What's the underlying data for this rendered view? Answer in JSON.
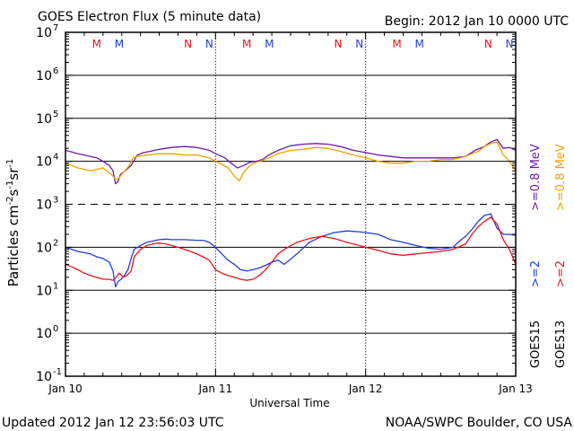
{
  "header": {
    "title": "GOES Electron Flux (5 minute data)",
    "begin": "Begin: 2012 Jan 10 0000 UTC"
  },
  "footer": {
    "updated": "Updated 2012 Jan 12 23:56:03 UTC",
    "credit": "NOAA/SWPC Boulder, CO USA"
  },
  "colors": {
    "goes15_2mev": "#1f3fd6",
    "goes15_08mev": "#6a1aa8",
    "goes13_2mev": "#e8141e",
    "goes13_08mev": "#f0a000",
    "marker_m": "#e8141e",
    "marker_n_red": "#e8141e",
    "marker_n_blue": "#1f3fd6"
  },
  "chart_data": {
    "type": "line",
    "title": "GOES Electron Flux (5 minute data)",
    "xlabel": "Universal Time",
    "ylabel_parts": {
      "base": "Particles cm",
      "e1": "-2",
      "mid1": "s",
      "e2": "-1",
      "mid2": "sr",
      "e3": "-1"
    },
    "x_unit": "hours since 2012 Jan 10 0000 UTC",
    "xlim": [
      0,
      72
    ],
    "yscale": "log",
    "ylim_exp": [
      -1,
      7
    ],
    "x_ticks": [
      {
        "x": 0,
        "label": "Jan 10"
      },
      {
        "x": 24,
        "label": "Jan 11"
      },
      {
        "x": 48,
        "label": "Jan 12"
      },
      {
        "x": 72,
        "label": "Jan 13"
      }
    ],
    "y_ticks": [
      {
        "exp": 7,
        "base": "10",
        "sup": "7"
      },
      {
        "exp": 6,
        "base": "10",
        "sup": "6"
      },
      {
        "exp": 5,
        "base": "10",
        "sup": "5"
      },
      {
        "exp": 4,
        "base": "10",
        "sup": "4"
      },
      {
        "exp": 3,
        "base": "10",
        "sup": "3"
      },
      {
        "exp": 2,
        "base": "10",
        "sup": "2"
      },
      {
        "exp": 1,
        "base": "10",
        "sup": "1"
      },
      {
        "exp": 0,
        "base": "10",
        "sup": "0"
      },
      {
        "exp": -1,
        "base": "10",
        "sup": "-1"
      }
    ],
    "hlines_solid_exp": [
      6,
      5,
      4,
      2,
      1,
      0
    ],
    "hlines_dashed_exp": [
      3
    ],
    "markers": [
      {
        "x": 5.0,
        "label": "M",
        "color": "#e8141e"
      },
      {
        "x": 8.6,
        "label": "M",
        "color": "#1f3fd6"
      },
      {
        "x": 19.6,
        "label": "N",
        "color": "#e8141e"
      },
      {
        "x": 23.0,
        "label": "N",
        "color": "#1f3fd6"
      },
      {
        "x": 29.0,
        "label": "M",
        "color": "#e8141e"
      },
      {
        "x": 32.6,
        "label": "M",
        "color": "#1f3fd6"
      },
      {
        "x": 43.6,
        "label": "N",
        "color": "#e8141e"
      },
      {
        "x": 47.0,
        "label": "N",
        "color": "#1f3fd6"
      },
      {
        "x": 53.0,
        "label": "M",
        "color": "#e8141e"
      },
      {
        "x": 56.6,
        "label": "M",
        "color": "#1f3fd6"
      },
      {
        "x": 67.6,
        "label": "N",
        "color": "#e8141e"
      },
      {
        "x": 71.0,
        "label": "N",
        "color": "#1f3fd6"
      }
    ],
    "legend_right": [
      {
        "text": "GOES13",
        "color": "#000000",
        "col": 1,
        "slot": "bottom"
      },
      {
        "text": ">=2",
        "color": "#e8141e",
        "col": 1,
        "slot": "mid"
      },
      {
        "text": ">=0.8 MeV",
        "color": "#f0a000",
        "col": 1,
        "slot": "top"
      },
      {
        "text": "GOES15",
        "color": "#000000",
        "col": 0,
        "slot": "bottom"
      },
      {
        "text": ">=2",
        "color": "#1f3fd6",
        "col": 0,
        "slot": "mid"
      },
      {
        "text": ">=0.8 MeV",
        "color": "#6a1aa8",
        "col": 0,
        "slot": "top"
      }
    ],
    "series": [
      {
        "name": "GOES15 >=0.8 MeV",
        "color": "#6a1aa8",
        "x": [
          0,
          1,
          2,
          3,
          4,
          5,
          6,
          7,
          7.6,
          8,
          8.4,
          8.8,
          9.2,
          9.8,
          10.5,
          11.5,
          12.5,
          13.5,
          15,
          17,
          19,
          21,
          23,
          24,
          25.5,
          26.5,
          27.5,
          28.5,
          29.5,
          30.5,
          31.5,
          32.5,
          34,
          36,
          38,
          40,
          42,
          44,
          46,
          48,
          50,
          52,
          54,
          56,
          58,
          60,
          62,
          64,
          65.5,
          67,
          68,
          69,
          70,
          71,
          72
        ],
        "y": [
          18000,
          16500,
          15000,
          14000,
          13000,
          12000,
          10000,
          8000,
          6000,
          3000,
          3400,
          5000,
          5500,
          6500,
          8000,
          14000,
          16000,
          17000,
          19000,
          21000,
          22000,
          21000,
          18000,
          15000,
          12000,
          9000,
          7000,
          8000,
          9500,
          10000,
          11000,
          14000,
          18000,
          23000,
          25000,
          26000,
          25000,
          22000,
          18000,
          16000,
          14000,
          13000,
          12000,
          12000,
          12000,
          12000,
          12000,
          13000,
          18000,
          22000,
          28000,
          32000,
          20000,
          21000,
          18000
        ]
      },
      {
        "name": "GOES13 >=0.8 MeV",
        "color": "#f0a000",
        "x": [
          0,
          1,
          2,
          3,
          4,
          5,
          6,
          7,
          7.6,
          8,
          8.5,
          9,
          9.5,
          10.2,
          10.8,
          11.5,
          13,
          15,
          17,
          19,
          21,
          23,
          24,
          25,
          26,
          27,
          27.8,
          28.5,
          29.5,
          30.5,
          31.5,
          32.5,
          34,
          36,
          38,
          40,
          42,
          44,
          46,
          48,
          50,
          52,
          54,
          56,
          58,
          60,
          62,
          64,
          65,
          66,
          67,
          68,
          69,
          70,
          71,
          72
        ],
        "y": [
          9000,
          8000,
          7000,
          6500,
          6000,
          6500,
          7000,
          5500,
          4500,
          3800,
          4000,
          5000,
          6000,
          8000,
          12000,
          13000,
          14000,
          15000,
          15000,
          14000,
          14000,
          12000,
          10000,
          8500,
          7000,
          4500,
          3500,
          5500,
          8000,
          9500,
          10500,
          12000,
          15000,
          18000,
          19000,
          21000,
          20000,
          17000,
          14000,
          12000,
          10000,
          9000,
          9000,
          10000,
          10000,
          11000,
          11000,
          13000,
          15000,
          17000,
          22000,
          26000,
          28000,
          14000,
          10000,
          6000
        ]
      },
      {
        "name": "GOES15 >=2 MeV",
        "color": "#1f3fd6",
        "x": [
          0,
          1,
          2,
          3,
          4,
          5,
          6,
          7,
          7.6,
          8,
          8.4,
          8.9,
          9.4,
          10,
          10.5,
          11,
          12,
          13,
          14,
          15,
          16,
          17,
          19,
          21,
          22,
          23,
          24,
          25,
          26,
          27,
          28,
          29,
          30,
          31,
          32,
          33,
          34,
          35,
          37,
          39,
          41,
          43,
          45,
          47,
          48,
          50,
          52,
          54,
          56,
          58,
          60,
          62,
          63,
          64,
          65,
          66,
          67,
          68,
          69,
          70,
          71,
          72
        ],
        "y": [
          100,
          90,
          80,
          75,
          70,
          60,
          55,
          45,
          28,
          12,
          16,
          18,
          22,
          30,
          55,
          90,
          110,
          130,
          140,
          150,
          155,
          150,
          150,
          145,
          145,
          130,
          100,
          70,
          50,
          40,
          30,
          28,
          30,
          33,
          38,
          45,
          50,
          40,
          70,
          130,
          180,
          220,
          240,
          230,
          220,
          200,
          150,
          130,
          110,
          95,
          90,
          100,
          140,
          180,
          260,
          400,
          550,
          600,
          280,
          200,
          200,
          190
        ]
      },
      {
        "name": "GOES13 >=2 MeV",
        "color": "#e8141e",
        "x": [
          0,
          1,
          2,
          3,
          4,
          5,
          6,
          7,
          7.6,
          8.1,
          8.6,
          9.2,
          9.8,
          10.5,
          11,
          12,
          13,
          14,
          15,
          16,
          17,
          18,
          19,
          20,
          21,
          22,
          23,
          24,
          25,
          26,
          27,
          28,
          29,
          30,
          31,
          32,
          33,
          34,
          35,
          37,
          39,
          41,
          43,
          45,
          47,
          48,
          50,
          52,
          54,
          56,
          58,
          60,
          62,
          64,
          65,
          66,
          67,
          68,
          69,
          70,
          71,
          72
        ],
        "y": [
          40,
          35,
          30,
          25,
          22,
          20,
          18,
          18,
          17,
          20,
          25,
          20,
          22,
          28,
          60,
          90,
          110,
          120,
          125,
          120,
          110,
          100,
          90,
          80,
          70,
          60,
          50,
          30,
          25,
          22,
          20,
          18,
          17,
          18,
          22,
          30,
          45,
          70,
          90,
          130,
          160,
          180,
          160,
          130,
          110,
          100,
          85,
          70,
          65,
          70,
          75,
          80,
          90,
          120,
          200,
          300,
          400,
          500,
          350,
          150,
          90,
          40
        ]
      }
    ]
  }
}
